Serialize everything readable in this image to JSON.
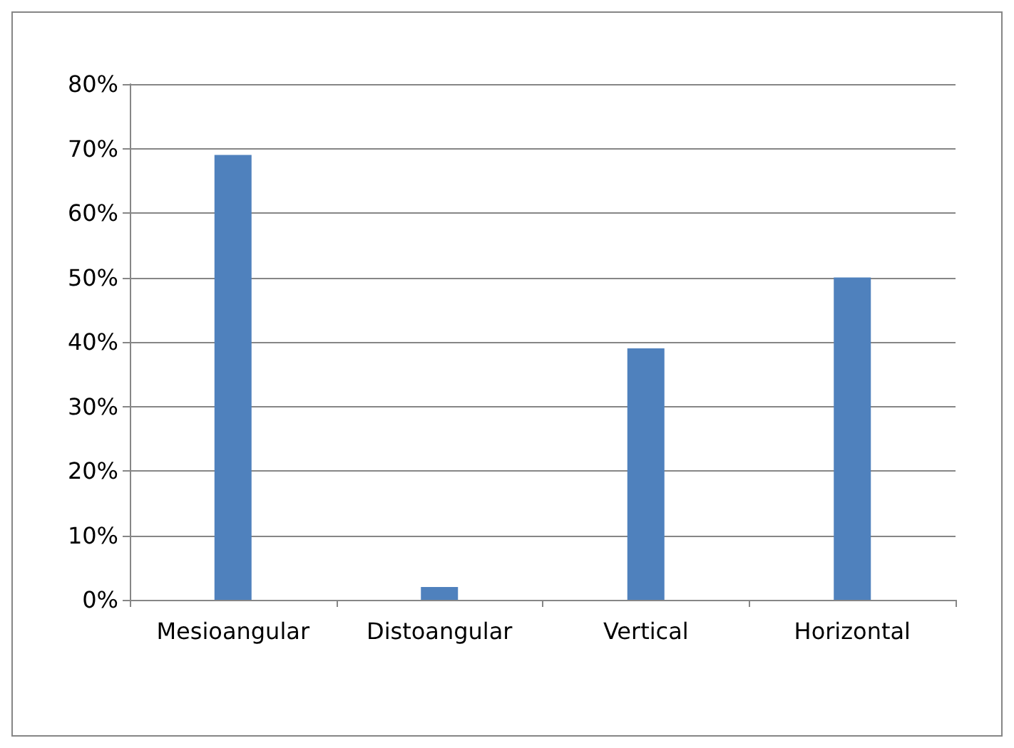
{
  "chart_data": {
    "type": "bar",
    "categories": [
      "Mesioangular",
      "Distoangular",
      "Vertical",
      "Horizontal"
    ],
    "values": [
      69,
      2,
      39,
      50
    ],
    "color": "#4f81bd",
    "ylim": [
      0,
      80
    ],
    "yticks": [
      {
        "value": 0,
        "label": "0%"
      },
      {
        "value": 10,
        "label": "10%"
      },
      {
        "value": 20,
        "label": "20%"
      },
      {
        "value": 30,
        "label": "30%"
      },
      {
        "value": 40,
        "label": "40%"
      },
      {
        "value": 50,
        "label": "50%"
      },
      {
        "value": 60,
        "label": "60%"
      },
      {
        "value": 70,
        "label": "70%"
      },
      {
        "value": 80,
        "label": "80%"
      }
    ],
    "grid": "y"
  }
}
